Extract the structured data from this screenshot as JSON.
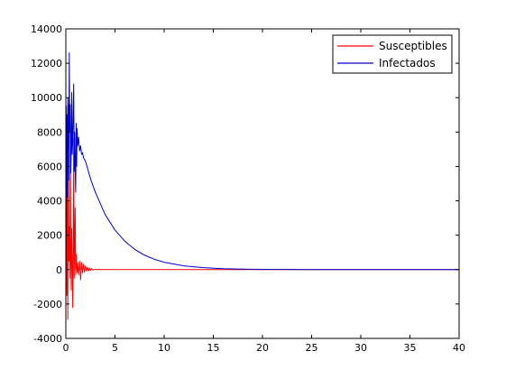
{
  "chart_data": {
    "type": "line",
    "title": "",
    "xlabel": "",
    "ylabel": "",
    "xlim": [
      0,
      40
    ],
    "ylim": [
      -4000,
      14000
    ],
    "xticks": [
      0,
      5,
      10,
      15,
      20,
      25,
      30,
      35,
      40
    ],
    "yticks": [
      -4000,
      -2000,
      0,
      2000,
      4000,
      6000,
      8000,
      10000,
      12000,
      14000
    ],
    "grid": false,
    "legend_position": "top-right",
    "series": [
      {
        "name": "Susceptibles",
        "color": "#ff0000",
        "x": [
          0,
          0.05,
          0.1,
          0.15,
          0.2,
          0.25,
          0.3,
          0.35,
          0.4,
          0.45,
          0.5,
          0.55,
          0.6,
          0.65,
          0.7,
          0.75,
          0.8,
          0.85,
          0.9,
          0.95,
          1.0,
          1.05,
          1.1,
          1.15,
          1.2,
          1.3,
          1.4,
          1.5,
          1.6,
          1.7,
          1.8,
          1.9,
          2.0,
          2.1,
          2.2,
          2.3,
          2.4,
          2.5,
          2.6,
          2.8,
          3.0,
          3.2,
          3.4,
          3.6,
          3.8,
          4.0,
          4.5,
          5,
          10,
          20,
          30,
          40
        ],
        "y": [
          0,
          9500,
          -1500,
          8500,
          -2900,
          9600,
          500,
          2500,
          -500,
          8200,
          600,
          -1200,
          2400,
          600,
          -2200,
          900,
          7600,
          -500,
          1700,
          3600,
          -300,
          900,
          200,
          -200,
          400,
          -300,
          500,
          -600,
          400,
          -200,
          300,
          -150,
          200,
          -100,
          150,
          -80,
          100,
          -50,
          60,
          -30,
          30,
          -15,
          15,
          -8,
          8,
          0,
          0,
          0,
          0,
          0,
          0,
          0
        ]
      },
      {
        "name": "Infectados",
        "color": "#0000cc",
        "x": [
          0,
          0.05,
          0.1,
          0.15,
          0.2,
          0.25,
          0.3,
          0.35,
          0.4,
          0.45,
          0.5,
          0.55,
          0.6,
          0.65,
          0.7,
          0.75,
          0.8,
          0.85,
          0.9,
          0.95,
          1.0,
          1.05,
          1.1,
          1.15,
          1.2,
          1.3,
          1.4,
          1.5,
          1.6,
          1.7,
          1.8,
          1.9,
          2.0,
          2.5,
          3,
          4,
          5,
          6,
          7,
          8,
          9,
          10,
          12,
          14,
          16,
          18,
          20,
          25,
          30,
          35,
          40
        ],
        "y": [
          0,
          4800,
          9000,
          4200,
          10000,
          8500,
          5200,
          12600,
          8000,
          9600,
          5600,
          7000,
          10300,
          6700,
          7500,
          9300,
          10800,
          5700,
          8000,
          5900,
          4500,
          8500,
          6000,
          8200,
          7200,
          7700,
          6900,
          7200,
          6700,
          6800,
          6500,
          6400,
          6300,
          5300,
          4500,
          3200,
          2300,
          1650,
          1180,
          840,
          600,
          430,
          220,
          110,
          55,
          28,
          14,
          3,
          0,
          0,
          0
        ]
      }
    ]
  }
}
